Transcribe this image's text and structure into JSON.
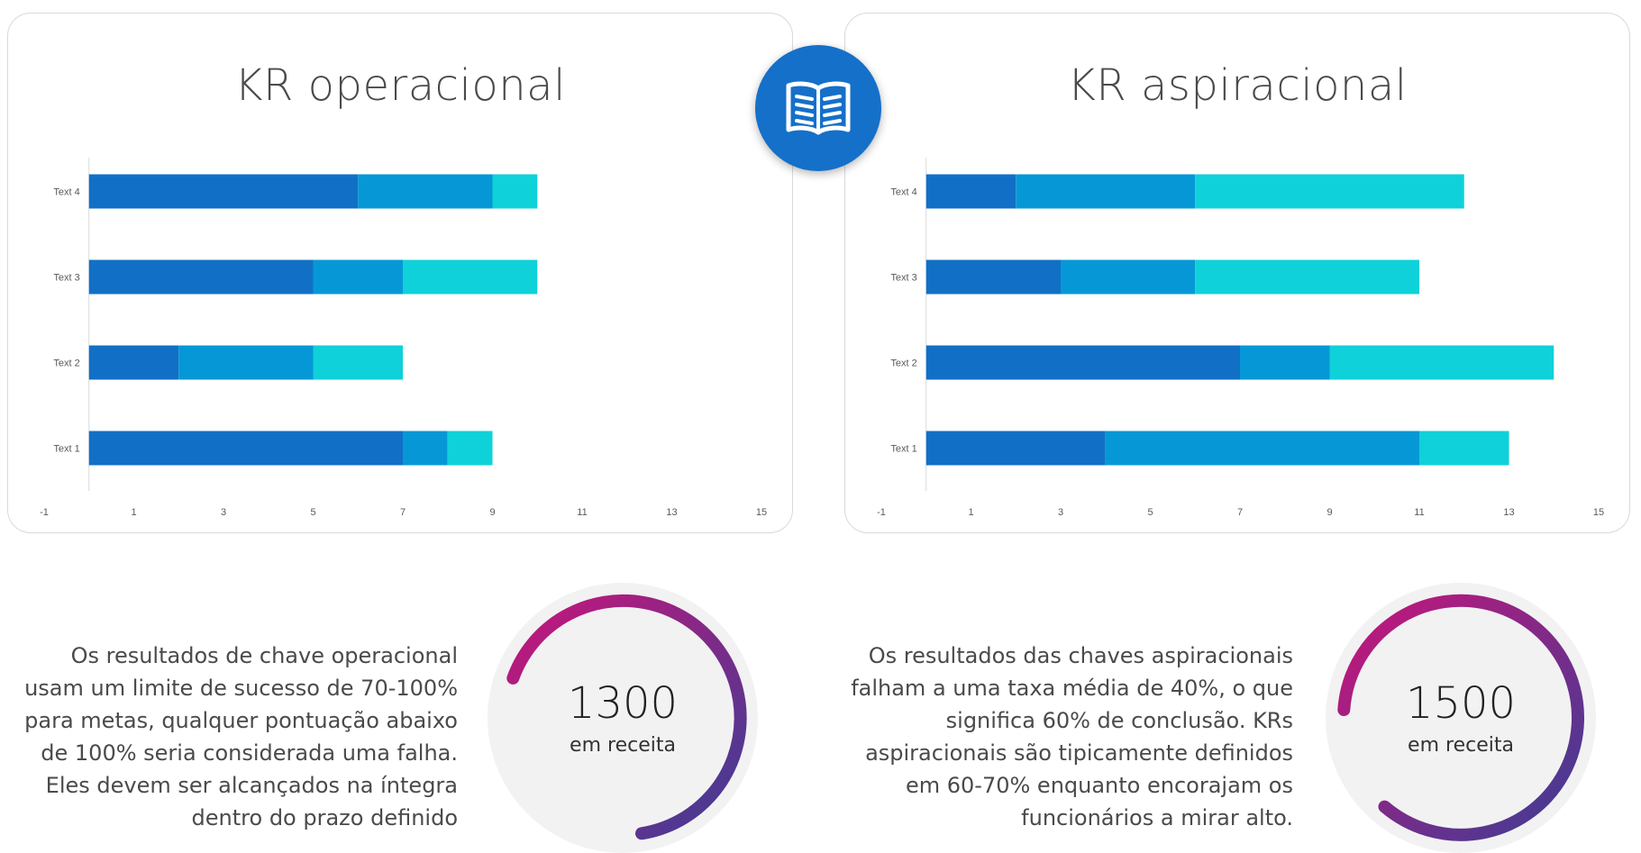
{
  "colors": {
    "seg1": "#1170c6",
    "seg2": "#0698d6",
    "seg3": "#0fd1d9",
    "badge": "#1570c9",
    "gauge_start": "#c8157a",
    "gauge_end": "#3b3e95",
    "gauge_bg": "#f2f2f2"
  },
  "center_icon": "open-book-icon",
  "chart_data": [
    {
      "type": "bar",
      "orientation": "horizontal",
      "stacked": true,
      "title": "KR operacional",
      "categories": [
        "Text 1",
        "Text 2",
        "Text 3",
        "Text 4"
      ],
      "series": [
        {
          "values": [
            7,
            2,
            5,
            6
          ]
        },
        {
          "values": [
            1,
            3,
            2,
            3
          ]
        },
        {
          "values": [
            1,
            2,
            3,
            1
          ]
        }
      ],
      "xlim": [
        -1,
        15
      ],
      "xticks": [
        -1,
        1,
        3,
        5,
        7,
        9,
        11,
        13,
        15
      ],
      "grid": false,
      "legend": "none"
    },
    {
      "type": "bar",
      "orientation": "horizontal",
      "stacked": true,
      "title": "KR aspiracional",
      "categories": [
        "Text 1",
        "Text 2",
        "Text 3",
        "Text 4"
      ],
      "series": [
        {
          "values": [
            4,
            7,
            3,
            2
          ]
        },
        {
          "values": [
            7,
            2,
            3,
            4
          ]
        },
        {
          "values": [
            2,
            5,
            5,
            6
          ]
        }
      ],
      "xlim": [
        -1,
        15
      ],
      "xticks": [
        -1,
        1,
        3,
        5,
        7,
        9,
        11,
        13,
        15
      ],
      "grid": false,
      "legend": "none"
    }
  ],
  "panels": [
    {
      "description": "Os resultados de chave operacional usam um limite de sucesso de 70-100% para metas, qualquer pontuação abaixo de 100% seria considerada uma falha. Eles devem ser alcançados na íntegra dentro do prazo definido",
      "gauge": {
        "value": "1300",
        "label": "em receita"
      }
    },
    {
      "description": "Os resultados das chaves aspiracionais falham a uma taxa média de 40%, o que significa 60% de conclusão. KRs aspiracionais são tipicamente definidos em 60-70% enquanto encorajam os funcionários a mirar alto.",
      "gauge": {
        "value": "1500",
        "label": "em receita"
      }
    }
  ]
}
